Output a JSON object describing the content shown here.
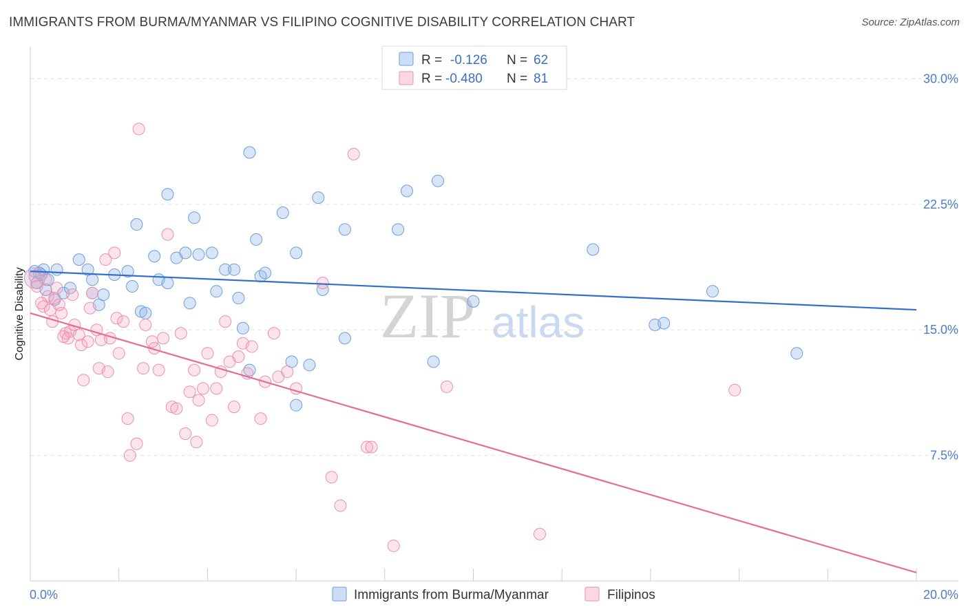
{
  "header": {
    "title": "IMMIGRANTS FROM BURMA/MYANMAR VS FILIPINO COGNITIVE DISABILITY CORRELATION CHART",
    "source": "Source: ZipAtlas.com"
  },
  "watermark": {
    "zip": "ZIP",
    "atlas": "atlas"
  },
  "legend": {
    "rows": [
      {
        "r_label": "R =",
        "r_value": "-0.126",
        "n_label": "N =",
        "n_value": "62",
        "color": "#8fb4e8"
      },
      {
        "r_label": "R =",
        "r_value": "-0.480",
        "n_label": "N =",
        "n_value": "81",
        "color": "#f4a7bf"
      }
    ]
  },
  "bottom_legend": [
    {
      "label": "Immigrants from Burma/Myanmar",
      "color": "#8fb4e8"
    },
    {
      "label": "Filipinos",
      "color": "#f4a7bf"
    }
  ],
  "colors": {
    "blue_fill": "rgba(143,180,232,0.35)",
    "blue_stroke": "#6c9ddd",
    "blue_line": "#2f6fcc",
    "pink_fill": "rgba(244,167,191,0.30)",
    "pink_stroke": "#ec8fae",
    "pink_line": "#e56b98",
    "grid": "#e3e3e3",
    "tick_label": "#4a7cc7"
  },
  "chart_data": {
    "type": "scatter",
    "title": "IMMIGRANTS FROM BURMA/MYANMAR VS FILIPINO COGNITIVE DISABILITY CORRELATION CHART",
    "xlabel": "",
    "ylabel": "Cognitive Disability",
    "xlim": [
      0,
      20
    ],
    "ylim": [
      0,
      31.5
    ],
    "x_ticks": [
      "0.0%",
      "20.0%"
    ],
    "y_ticks": [
      {
        "value": 7.5,
        "label": "7.5%"
      },
      {
        "value": 15.0,
        "label": "15.0%"
      },
      {
        "value": 22.5,
        "label": "22.5%"
      },
      {
        "value": 30.0,
        "label": "30.0%"
      }
    ],
    "grid": true,
    "legend_position": "top-center",
    "series": [
      {
        "name": "Immigrants from Burma/Myanmar",
        "trend": {
          "x": [
            0,
            20
          ],
          "y": [
            18.5,
            16.2
          ]
        },
        "points": [
          [
            0.1,
            18.5
          ],
          [
            0.15,
            17.8
          ],
          [
            0.25,
            18.3
          ],
          [
            0.3,
            18.6
          ],
          [
            0.35,
            17.4
          ],
          [
            0.4,
            18.0
          ],
          [
            0.55,
            16.8
          ],
          [
            0.6,
            18.6
          ],
          [
            0.75,
            17.2
          ],
          [
            0.9,
            17.5
          ],
          [
            1.1,
            19.2
          ],
          [
            1.3,
            18.6
          ],
          [
            1.4,
            17.2
          ],
          [
            1.55,
            16.5
          ],
          [
            1.65,
            17.1
          ],
          [
            1.9,
            18.3
          ],
          [
            2.2,
            18.5
          ],
          [
            2.3,
            17.6
          ],
          [
            2.5,
            16.1
          ],
          [
            2.6,
            16.0
          ],
          [
            2.4,
            21.3
          ],
          [
            2.8,
            19.4
          ],
          [
            2.9,
            18.0
          ],
          [
            3.1,
            17.8
          ],
          [
            3.1,
            23.1
          ],
          [
            3.3,
            19.3
          ],
          [
            3.5,
            19.6
          ],
          [
            3.6,
            16.6
          ],
          [
            3.8,
            19.5
          ],
          [
            3.7,
            21.7
          ],
          [
            4.1,
            19.6
          ],
          [
            4.2,
            17.3
          ],
          [
            4.4,
            18.6
          ],
          [
            4.6,
            18.6
          ],
          [
            4.7,
            16.9
          ],
          [
            4.8,
            15.1
          ],
          [
            4.95,
            12.6
          ],
          [
            5.1,
            20.4
          ],
          [
            5.2,
            18.2
          ],
          [
            5.3,
            18.4
          ],
          [
            4.95,
            25.6
          ],
          [
            5.7,
            22.0
          ],
          [
            5.9,
            13.1
          ],
          [
            6.0,
            10.5
          ],
          [
            6.0,
            19.6
          ],
          [
            6.3,
            12.9
          ],
          [
            6.5,
            22.9
          ],
          [
            6.6,
            17.4
          ],
          [
            7.1,
            21.0
          ],
          [
            7.1,
            14.5
          ],
          [
            8.3,
            21.0
          ],
          [
            8.5,
            23.3
          ],
          [
            9.1,
            13.1
          ],
          [
            9.2,
            23.9
          ],
          [
            10.0,
            16.7
          ],
          [
            12.7,
            19.8
          ],
          [
            14.1,
            15.3
          ],
          [
            14.3,
            15.4
          ],
          [
            15.4,
            17.3
          ],
          [
            17.3,
            13.6
          ],
          [
            0.2,
            18.4
          ],
          [
            1.4,
            18.0
          ]
        ]
      },
      {
        "name": "Filipinos",
        "trend": {
          "x": [
            0,
            20
          ],
          "y": [
            16.0,
            0.5
          ]
        },
        "points": [
          [
            0.1,
            18.2
          ],
          [
            0.15,
            17.6
          ],
          [
            0.3,
            16.4
          ],
          [
            0.35,
            18.0
          ],
          [
            0.4,
            17.0
          ],
          [
            0.45,
            16.2
          ],
          [
            0.5,
            15.5
          ],
          [
            0.55,
            16.9
          ],
          [
            0.6,
            17.5
          ],
          [
            0.7,
            16.0
          ],
          [
            0.8,
            14.8
          ],
          [
            0.85,
            14.5
          ],
          [
            0.9,
            14.9
          ],
          [
            0.95,
            17.1
          ],
          [
            1.0,
            15.3
          ],
          [
            1.1,
            14.7
          ],
          [
            1.15,
            14.1
          ],
          [
            1.2,
            12.0
          ],
          [
            1.3,
            14.3
          ],
          [
            1.4,
            17.2
          ],
          [
            1.5,
            15.0
          ],
          [
            1.55,
            12.7
          ],
          [
            1.7,
            19.2
          ],
          [
            1.75,
            12.5
          ],
          [
            1.8,
            14.5
          ],
          [
            1.9,
            19.6
          ],
          [
            1.95,
            15.7
          ],
          [
            2.0,
            13.6
          ],
          [
            2.2,
            9.7
          ],
          [
            2.25,
            7.5
          ],
          [
            2.4,
            8.2
          ],
          [
            2.45,
            27.0
          ],
          [
            2.6,
            15.3
          ],
          [
            2.75,
            14.3
          ],
          [
            2.8,
            13.9
          ],
          [
            2.9,
            12.6
          ],
          [
            3.0,
            14.5
          ],
          [
            3.1,
            20.7
          ],
          [
            3.2,
            10.4
          ],
          [
            3.3,
            10.3
          ],
          [
            3.5,
            8.8
          ],
          [
            3.6,
            11.3
          ],
          [
            3.7,
            12.6
          ],
          [
            3.75,
            8.3
          ],
          [
            3.8,
            10.8
          ],
          [
            3.9,
            11.5
          ],
          [
            4.0,
            13.6
          ],
          [
            4.1,
            9.6
          ],
          [
            4.2,
            11.5
          ],
          [
            4.3,
            12.5
          ],
          [
            4.5,
            13.1
          ],
          [
            4.6,
            10.4
          ],
          [
            4.7,
            13.4
          ],
          [
            4.8,
            14.2
          ],
          [
            4.9,
            12.4
          ],
          [
            5.0,
            14.0
          ],
          [
            5.2,
            9.7
          ],
          [
            5.3,
            11.9
          ],
          [
            5.5,
            14.8
          ],
          [
            5.6,
            12.2
          ],
          [
            5.8,
            12.5
          ],
          [
            6.0,
            11.5
          ],
          [
            6.6,
            17.8
          ],
          [
            6.8,
            6.2
          ],
          [
            7.0,
            4.5
          ],
          [
            7.3,
            25.5
          ],
          [
            7.6,
            8.0
          ],
          [
            7.7,
            8.0
          ],
          [
            8.2,
            2.1
          ],
          [
            9.4,
            11.6
          ],
          [
            11.5,
            2.8
          ],
          [
            15.9,
            11.4
          ],
          [
            0.25,
            16.6
          ],
          [
            0.65,
            16.5
          ],
          [
            1.35,
            16.3
          ],
          [
            2.1,
            15.5
          ],
          [
            3.4,
            14.8
          ],
          [
            0.75,
            14.6
          ],
          [
            2.55,
            12.7
          ],
          [
            4.4,
            15.5
          ],
          [
            1.6,
            14.4
          ]
        ]
      }
    ]
  }
}
